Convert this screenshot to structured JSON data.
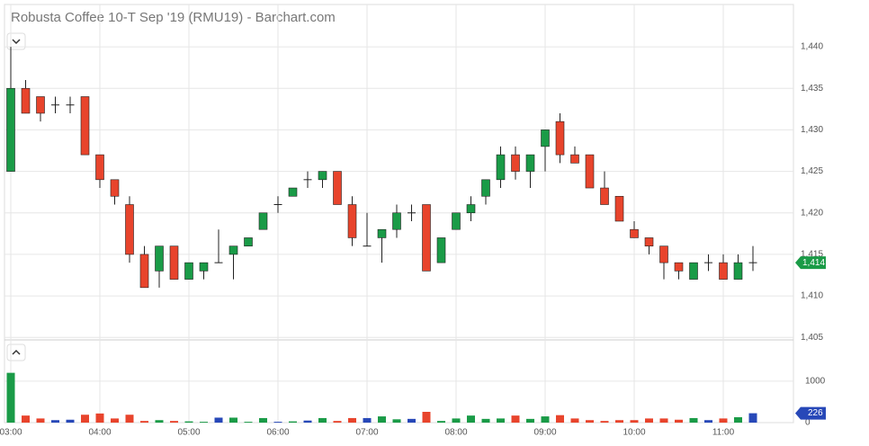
{
  "chart_data": {
    "type": "candlestick",
    "title": "Robusta Coffee 10-T Sep '19 (RMU19) - Barchart.com",
    "categories": [
      "03:00",
      null,
      null,
      null,
      null,
      null,
      "04:00",
      null,
      null,
      null,
      null,
      null,
      "05:00",
      null,
      null,
      null,
      null,
      null,
      "06:00",
      null,
      null,
      null,
      null,
      null,
      "07:00",
      null,
      null,
      null,
      null,
      null,
      "08:00",
      null,
      null,
      null,
      null,
      null,
      "09:00",
      null,
      null,
      null,
      null,
      null,
      "10:00",
      null,
      null,
      null,
      null,
      null,
      "11:00",
      null,
      null
    ],
    "open": [
      1425,
      1435,
      1434,
      1433,
      1433,
      1434,
      1427,
      1424,
      1421,
      1415,
      1413,
      1416,
      1412,
      1413,
      1414,
      1415,
      1416,
      1418,
      1421,
      1422,
      1424,
      1424,
      1425,
      1421,
      1416,
      1417,
      1418,
      1420,
      1421,
      1414,
      1418,
      1420,
      1422,
      1424,
      1427,
      1425,
      1428,
      1431,
      1427,
      1427,
      1423,
      1422,
      1418,
      1417,
      1416,
      1414,
      1412,
      1414,
      1414,
      1412,
      1414
    ],
    "high": [
      1440,
      1436,
      1434,
      1434,
      1434,
      1434,
      1427,
      1424,
      1422,
      1416,
      1416,
      1416,
      1414,
      1414,
      1418,
      1416,
      1417,
      1420,
      1422,
      1423,
      1425,
      1425,
      1425,
      1422,
      1420,
      1418,
      1421,
      1421,
      1421,
      1417,
      1420,
      1422,
      1424,
      1428,
      1428,
      1427,
      1430,
      1432,
      1428,
      1427,
      1425,
      1422,
      1419,
      1417,
      1416,
      1414,
      1414,
      1415,
      1415,
      1415,
      1416
    ],
    "low": [
      1425,
      1432,
      1431,
      1432,
      1432,
      1427,
      1423,
      1421,
      1414,
      1411,
      1411,
      1412,
      1412,
      1412,
      1414,
      1412,
      1416,
      1418,
      1420,
      1422,
      1423,
      1423,
      1421,
      1416,
      1416,
      1414,
      1417,
      1419,
      1413,
      1414,
      1418,
      1419,
      1421,
      1423,
      1424,
      1423,
      1425,
      1426,
      1426,
      1423,
      1421,
      1419,
      1417,
      1415,
      1412,
      1412,
      1412,
      1413,
      1412,
      1412,
      1413
    ],
    "close": [
      1435,
      1432,
      1432,
      1433,
      1433,
      1427,
      1424,
      1422,
      1415,
      1411,
      1416,
      1412,
      1414,
      1414,
      1414,
      1416,
      1417,
      1420,
      1421,
      1423,
      1424,
      1425,
      1421,
      1417,
      1416,
      1418,
      1420,
      1420,
      1413,
      1417,
      1420,
      1421,
      1424,
      1427,
      1425,
      1427,
      1430,
      1427,
      1426,
      1423,
      1421,
      1419,
      1417,
      1416,
      1414,
      1413,
      1414,
      1414,
      1412,
      1414,
      1414
    ],
    "volume": [
      1200,
      170,
      100,
      60,
      70,
      190,
      220,
      100,
      190,
      40,
      60,
      40,
      30,
      20,
      120,
      120,
      20,
      110,
      20,
      30,
      50,
      110,
      40,
      110,
      110,
      150,
      80,
      90,
      260,
      40,
      100,
      170,
      90,
      100,
      170,
      90,
      150,
      180,
      100,
      60,
      40,
      60,
      60,
      100,
      100,
      70,
      110,
      60,
      100,
      130,
      226
    ],
    "up_color": "#1a9b47",
    "down_color": "#e8442c",
    "flat_color": "#2748b8",
    "ylim": [
      1404.7,
      1445.1
    ],
    "yticks": [
      {
        "value": 1405,
        "label": "1,405"
      },
      {
        "value": 1410,
        "label": "1,410"
      },
      {
        "value": 1415,
        "label": "1,415"
      },
      {
        "value": 1420,
        "label": "1,420"
      },
      {
        "value": 1425,
        "label": "1,425"
      },
      {
        "value": 1430,
        "label": "1,430"
      },
      {
        "value": 1435,
        "label": "1,435"
      },
      {
        "value": 1440,
        "label": "1,440"
      }
    ],
    "volume_ylim": [
      0,
      1950
    ],
    "volume_yticks": [
      0,
      1000
    ],
    "last_price_label": "1,414",
    "last_volume_label": "226",
    "grid": true
  }
}
